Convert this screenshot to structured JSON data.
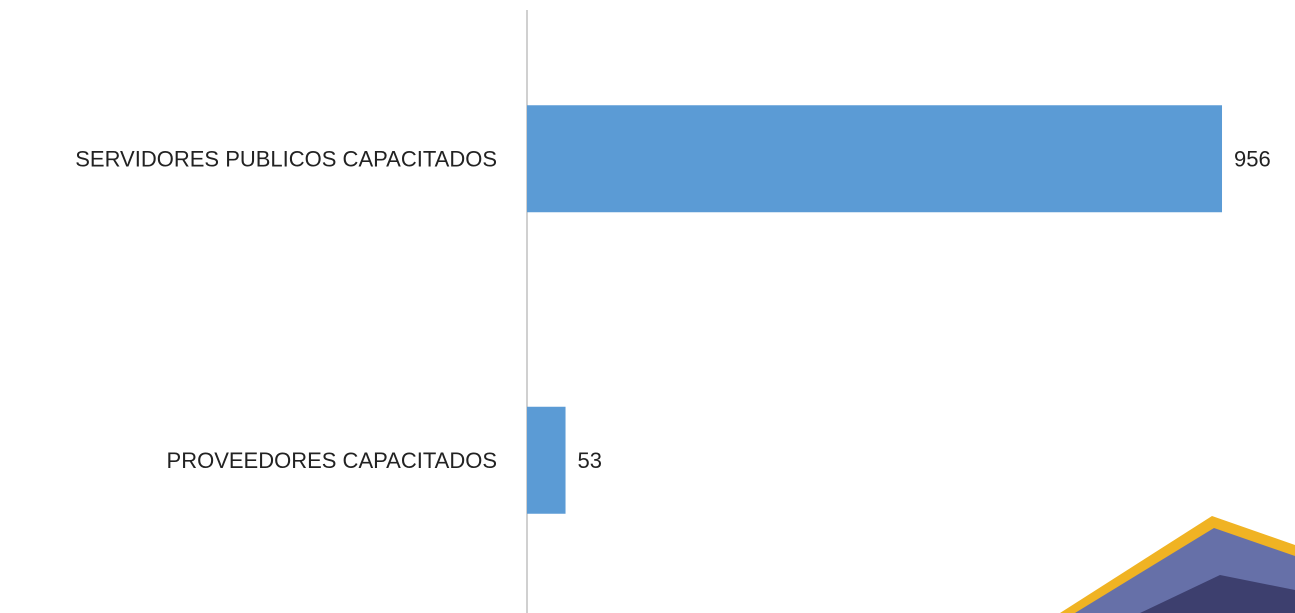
{
  "chart_data": {
    "type": "barh",
    "categories": [
      "SERVIDORES PUBLICOS CAPACITADOS",
      "PROVEEDORES CAPACITADOS"
    ],
    "values": [
      956,
      53
    ],
    "color": "#5b9bd5",
    "xlim": [
      0,
      1000
    ]
  }
}
